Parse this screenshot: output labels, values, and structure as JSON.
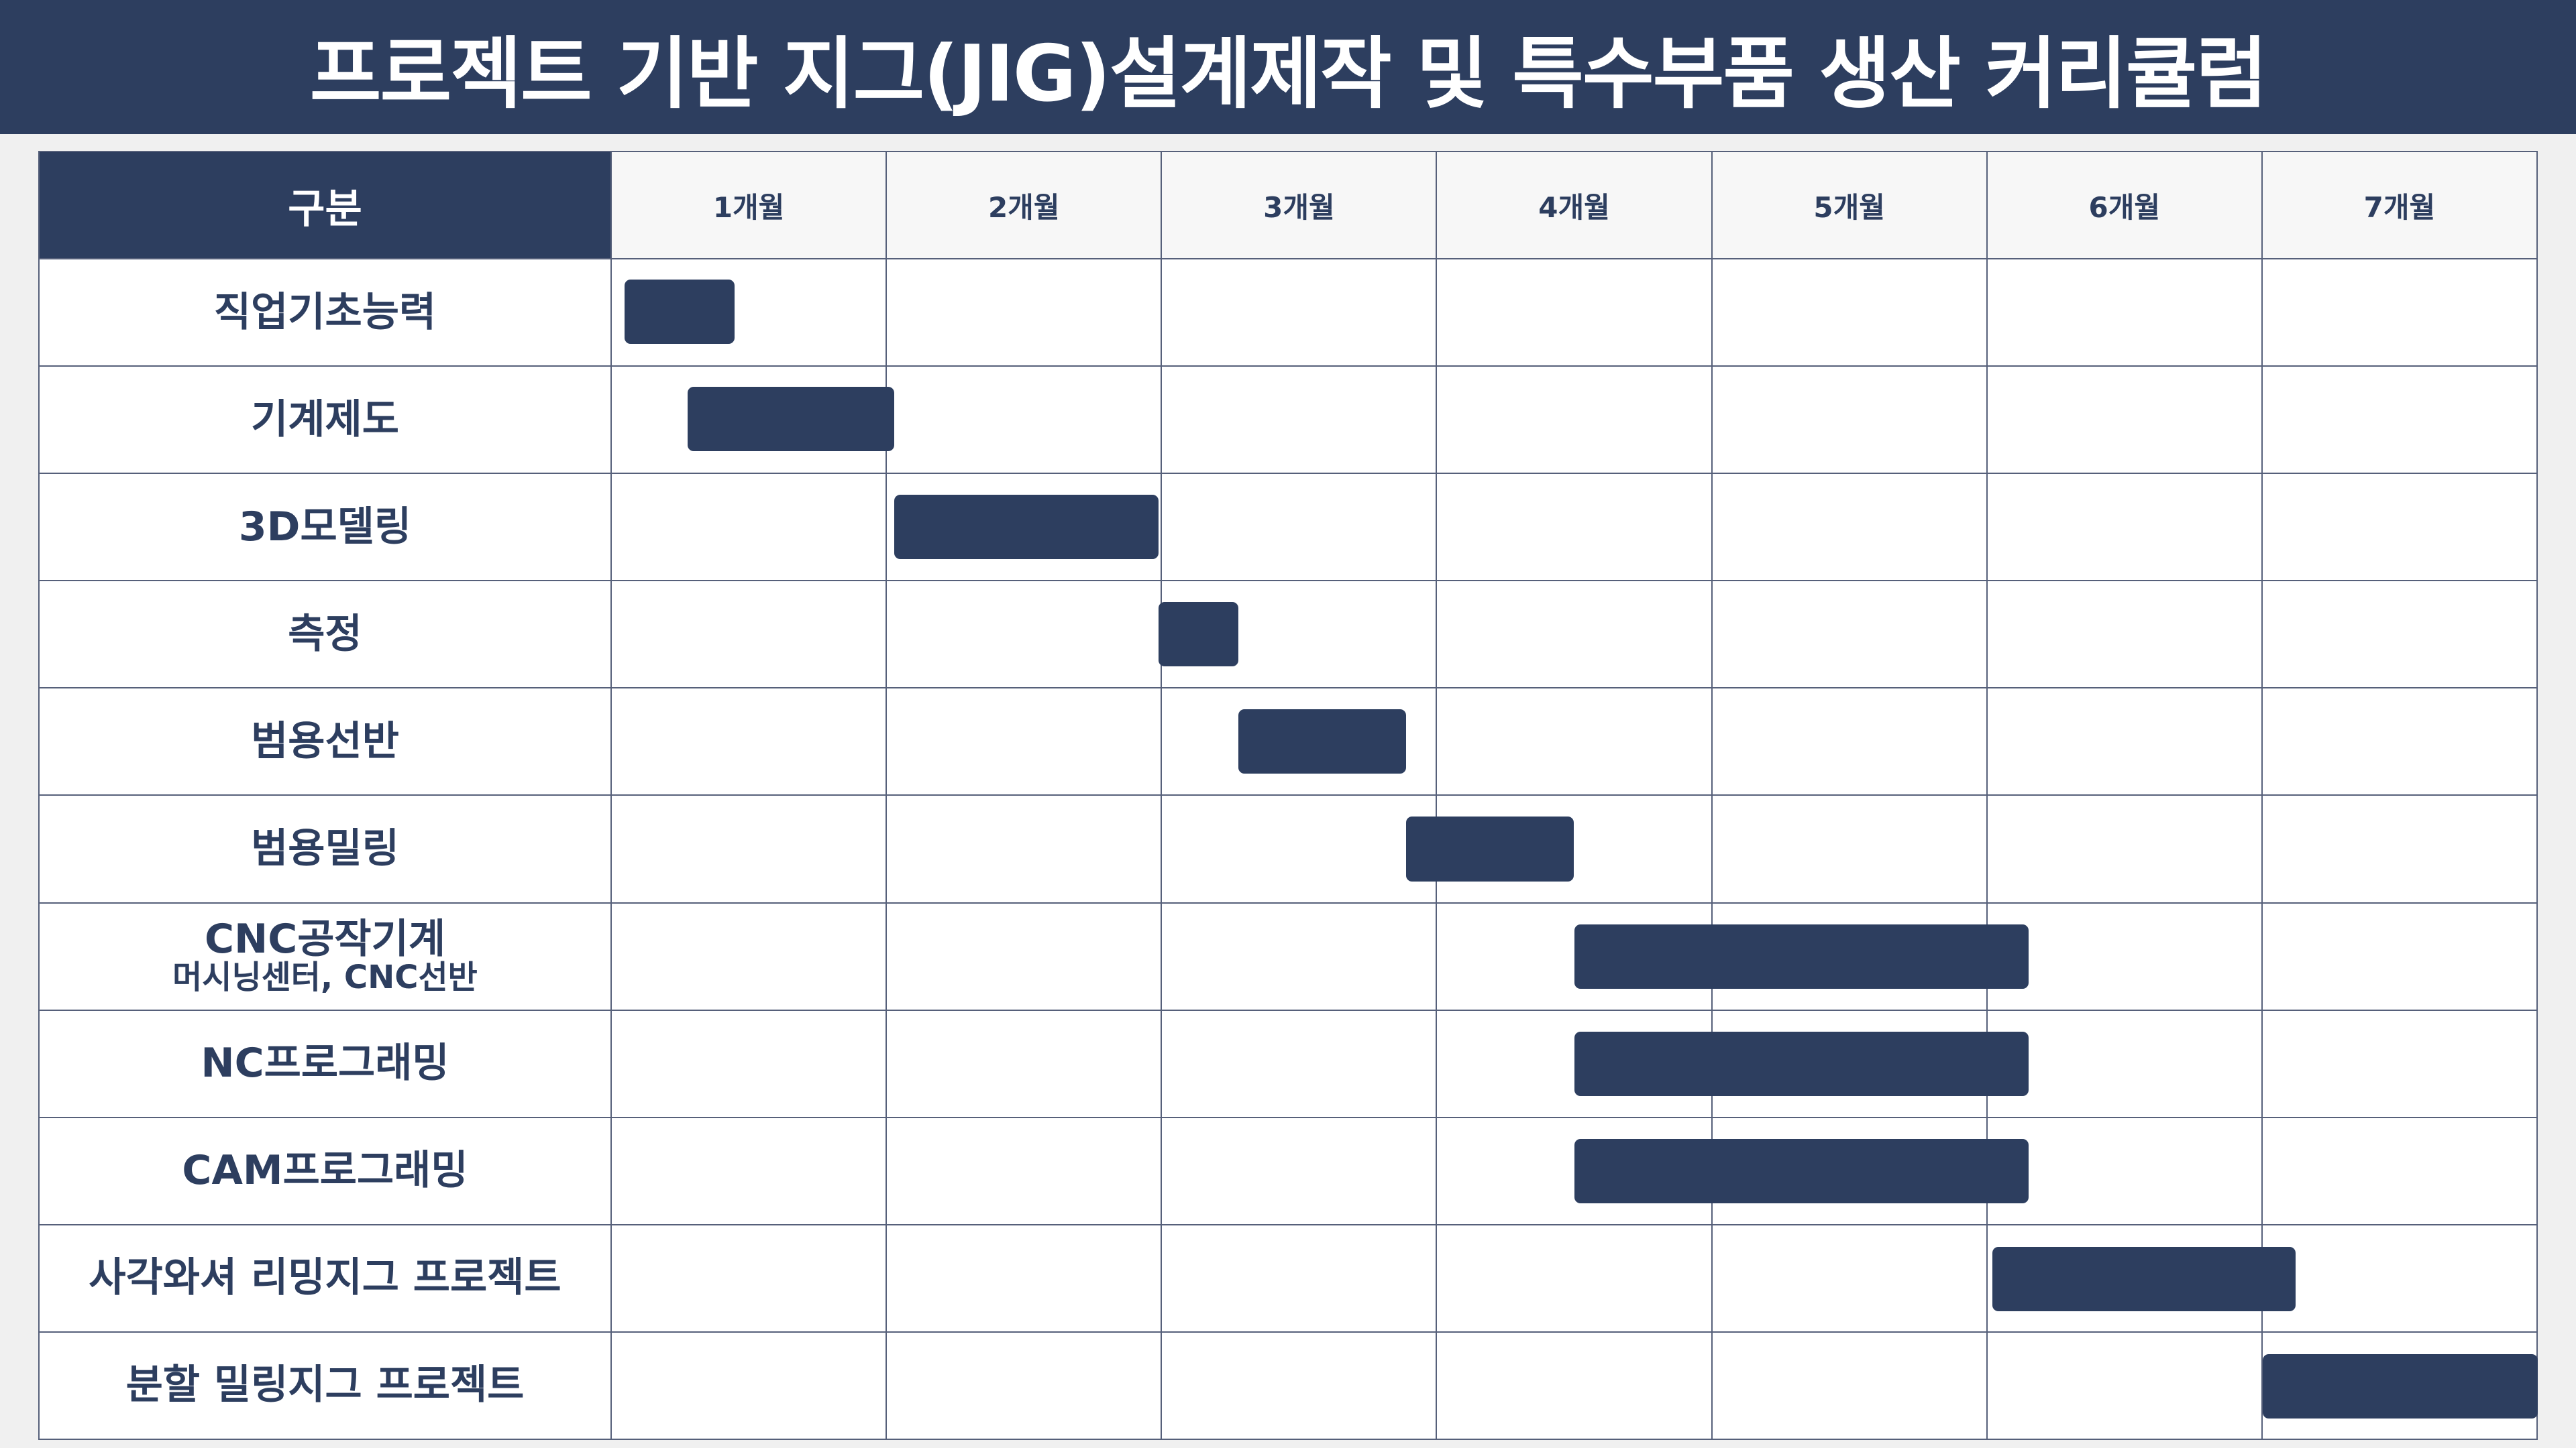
{
  "title": "프로젝트 기반 지그(JIG)설계제작 및 특수부품 생산 커리큘럼",
  "header_label": "구분",
  "months": [
    "1개월",
    "2개월",
    "3개월",
    "4개월",
    "5개월",
    "6개월",
    "7개월"
  ],
  "chart_data": {
    "type": "gantt",
    "time_unit": "month",
    "rows": [
      {
        "label": "직업기초능력",
        "sublabel": "",
        "start": 0.05,
        "end": 0.45
      },
      {
        "label": "기계제도",
        "sublabel": "",
        "start": 0.28,
        "end": 1.03
      },
      {
        "label": "3D모델링",
        "sublabel": "",
        "start": 1.03,
        "end": 1.99
      },
      {
        "label": "측정",
        "sublabel": "",
        "start": 1.99,
        "end": 2.28
      },
      {
        "label": "범용선반",
        "sublabel": "",
        "start": 2.28,
        "end": 2.89
      },
      {
        "label": "범용밀링",
        "sublabel": "",
        "start": 2.89,
        "end": 3.5
      },
      {
        "label": "CNC공작기계",
        "sublabel": "머시닝센터, CNC선반",
        "start": 3.5,
        "end": 5.15
      },
      {
        "label": "NC프로그래밍",
        "sublabel": "",
        "start": 3.5,
        "end": 5.15
      },
      {
        "label": "CAM프로그래밍",
        "sublabel": "",
        "start": 3.5,
        "end": 5.15
      },
      {
        "label": "사각와셔 리밍지그 프로젝트",
        "sublabel": "",
        "start": 5.02,
        "end": 6.12
      },
      {
        "label": "분할 밀링지그 프로젝트",
        "sublabel": "",
        "start": 6.0,
        "end": 7.0
      }
    ]
  }
}
